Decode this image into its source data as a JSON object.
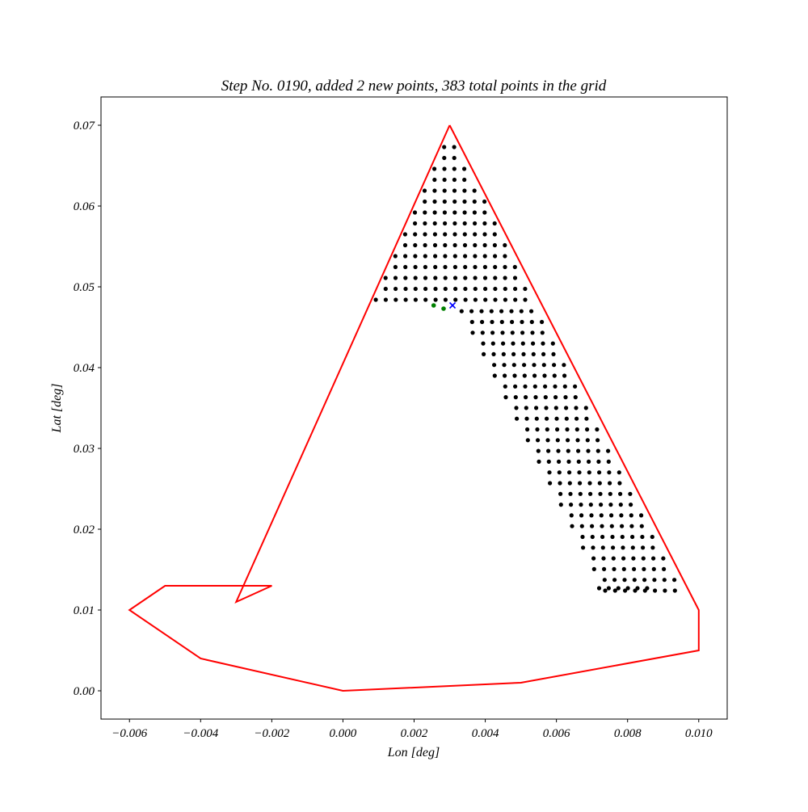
{
  "chart_data": {
    "type": "scatter",
    "title": "Step No. 0190, added 2 new points, 383 total points in the grid",
    "xlabel": "Lon [deg]",
    "ylabel": "Lat [deg]",
    "xlim": [
      -0.0068,
      0.0108
    ],
    "ylim": [
      -0.0035,
      0.0735
    ],
    "grid": false,
    "x_ticks": [
      {
        "value": -0.006,
        "label": "−0.006"
      },
      {
        "value": -0.004,
        "label": "−0.004"
      },
      {
        "value": -0.002,
        "label": "−0.002"
      },
      {
        "value": 0.0,
        "label": "0.000"
      },
      {
        "value": 0.002,
        "label": "0.002"
      },
      {
        "value": 0.004,
        "label": "0.004"
      },
      {
        "value": 0.006,
        "label": "0.006"
      },
      {
        "value": 0.008,
        "label": "0.008"
      },
      {
        "value": 0.01,
        "label": "0.010"
      }
    ],
    "y_ticks": [
      {
        "value": 0.0,
        "label": "0.00"
      },
      {
        "value": 0.01,
        "label": "0.01"
      },
      {
        "value": 0.02,
        "label": "0.02"
      },
      {
        "value": 0.03,
        "label": "0.03"
      },
      {
        "value": 0.04,
        "label": "0.04"
      },
      {
        "value": 0.05,
        "label": "0.05"
      },
      {
        "value": 0.06,
        "label": "0.06"
      },
      {
        "value": 0.07,
        "label": "0.07"
      }
    ],
    "boundary": {
      "color": "#ff0000",
      "points": [
        [
          0.003,
          0.07
        ],
        [
          0.01,
          0.01
        ],
        [
          0.01,
          0.005
        ],
        [
          0.005,
          0.001
        ],
        [
          0.0,
          0.0
        ],
        [
          -0.004,
          0.004
        ],
        [
          -0.006,
          0.01
        ],
        [
          -0.005,
          0.013
        ],
        [
          -0.002,
          0.013
        ],
        [
          -0.003,
          0.011
        ],
        [
          0.003,
          0.07
        ]
      ]
    },
    "grid_points": {
      "color": "#000000",
      "top": {
        "y_min": 0.0484,
        "y_max": 0.0683,
        "y_step": 0.00135,
        "col_step": 0.00028
      },
      "band": {
        "y_min": 0.0124,
        "y_step": 0.00133,
        "width": 0.0022,
        "col_step": 0.00028
      },
      "foot": {
        "y": 0.0127,
        "x_from": 0.0072,
        "x_to": 0.0088,
        "step": 0.00027
      }
    },
    "new_points": {
      "color": "#008000",
      "x": [
        0.00255,
        0.00283
      ],
      "y": [
        0.0477,
        0.0473
      ]
    },
    "current_point": {
      "color": "#0000ff",
      "marker": "x",
      "x": [
        0.00308
      ],
      "y": [
        0.0477
      ]
    }
  }
}
